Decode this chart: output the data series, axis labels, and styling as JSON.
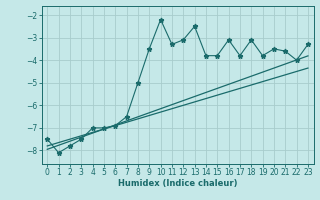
{
  "xlabel": "Humidex (Indice chaleur)",
  "bg_color": "#c5e8e8",
  "grid_color": "#a8cccc",
  "line_color": "#1a6b6b",
  "xlim": [
    -0.5,
    23.5
  ],
  "ylim": [
    -8.6,
    -1.6
  ],
  "x_ticks": [
    0,
    1,
    2,
    3,
    4,
    5,
    6,
    7,
    8,
    9,
    10,
    11,
    12,
    13,
    14,
    15,
    16,
    17,
    18,
    19,
    20,
    21,
    22,
    23
  ],
  "y_ticks": [
    -8,
    -7,
    -6,
    -5,
    -4,
    -3,
    -2
  ],
  "wavy_x": [
    0,
    1,
    2,
    3,
    4,
    5,
    6,
    7,
    8,
    9,
    10,
    11,
    12,
    13,
    14,
    15,
    16,
    17,
    18,
    19,
    20,
    21,
    22,
    23
  ],
  "wavy_y": [
    -7.5,
    -8.1,
    -7.8,
    -7.5,
    -7.0,
    -7.0,
    -6.9,
    -6.5,
    -5.0,
    -3.5,
    -2.2,
    -3.3,
    -3.1,
    -2.5,
    -3.8,
    -3.8,
    -3.1,
    -3.8,
    -3.1,
    -3.8,
    -3.5,
    -3.6,
    -4.0,
    -3.3
  ],
  "reg1_x": [
    0,
    1,
    2,
    3,
    4,
    5,
    6,
    7,
    8,
    9,
    10,
    11,
    12,
    13,
    14,
    15,
    16,
    17,
    18,
    19,
    20,
    21,
    22,
    23
  ],
  "reg1_y": [
    -7.8,
    -7.65,
    -7.5,
    -7.35,
    -7.2,
    -7.05,
    -6.9,
    -6.75,
    -6.6,
    -6.45,
    -6.3,
    -6.15,
    -6.0,
    -5.85,
    -5.7,
    -5.55,
    -5.4,
    -5.25,
    -5.1,
    -4.95,
    -4.8,
    -4.65,
    -4.5,
    -4.35
  ],
  "reg2_x": [
    0,
    1,
    2,
    3,
    4,
    5,
    6,
    7,
    8,
    9,
    10,
    11,
    12,
    13,
    14,
    15,
    16,
    17,
    18,
    19,
    20,
    21,
    22,
    23
  ],
  "reg2_y": [
    -7.95,
    -7.77,
    -7.59,
    -7.41,
    -7.23,
    -7.05,
    -6.87,
    -6.69,
    -6.51,
    -6.33,
    -6.15,
    -5.97,
    -5.79,
    -5.61,
    -5.43,
    -5.25,
    -5.07,
    -4.89,
    -4.71,
    -4.53,
    -4.35,
    -4.17,
    -3.99,
    -3.81
  ]
}
